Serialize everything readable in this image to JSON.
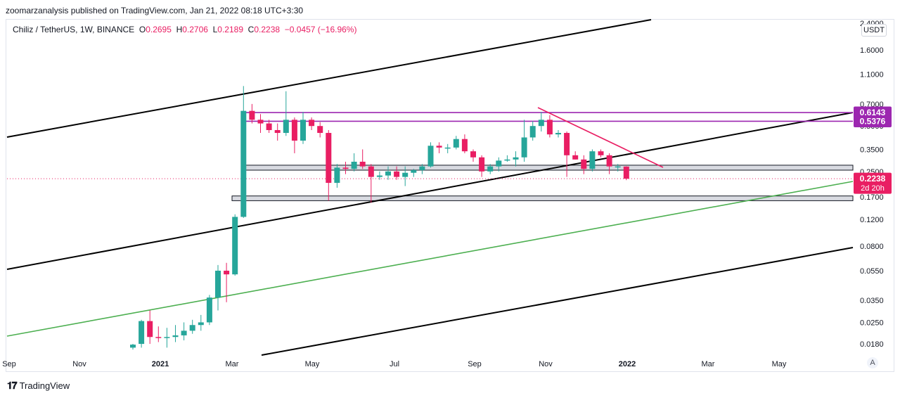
{
  "header": {
    "publish_line": "zoomarzanalysis published on TradingView.com, Jan 21, 2022 08:18 UTC+3:30"
  },
  "legend": {
    "symbol": "Chiliz / TetherUS, 1W, BINANCE",
    "open_key": "O",
    "open": "0.2695",
    "high_key": "H",
    "high": "0.2706",
    "low_key": "L",
    "low": "0.2189",
    "close_key": "C",
    "close": "0.2238",
    "change": "−0.0457 (−16.96%)"
  },
  "price_axis": {
    "currency": "USDT",
    "auto_label": "A",
    "last_price": "0.2238",
    "countdown": "2d 20h",
    "level_upper": "0.6143",
    "level_lower": "0.5376"
  },
  "colors": {
    "up": "#26a69a",
    "down": "#e91e63",
    "trendline": "#000000",
    "channel_green": "#4caf50",
    "resistance": "#9c27b0",
    "downtrend": "#e91e63",
    "zone_fill": "#d1d4dc",
    "price_tag": "#e91e63",
    "level_tag": "#9c27b0"
  },
  "chart_data": {
    "type": "candlestick",
    "symbol": "CHZUSDT",
    "interval": "1W",
    "y_scale": "log",
    "ylim": [
      0.0155,
      2.4
    ],
    "y_ticks": [
      "2.4000",
      "1.6000",
      "1.1000",
      "0.7000",
      "0.5000",
      "0.3500",
      "0.2500",
      "0.1700",
      "0.1200",
      "0.0800",
      "0.0550",
      "0.0350",
      "0.0250",
      "0.0180"
    ],
    "x_ticks": [
      "Sep",
      "Nov",
      "2021",
      "Mar",
      "May",
      "Jul",
      "Sep",
      "Nov",
      "2022",
      "Mar",
      "May"
    ],
    "grid": false,
    "candles": [
      {
        "o": 0.017,
        "h": 0.018,
        "l": 0.0165,
        "c": 0.0178
      },
      {
        "o": 0.018,
        "h": 0.026,
        "l": 0.017,
        "c": 0.0255
      },
      {
        "o": 0.0255,
        "h": 0.03,
        "l": 0.018,
        "c": 0.02
      },
      {
        "o": 0.02,
        "h": 0.0235,
        "l": 0.0185,
        "c": 0.0198
      },
      {
        "o": 0.0198,
        "h": 0.023,
        "l": 0.017,
        "c": 0.02
      },
      {
        "o": 0.02,
        "h": 0.024,
        "l": 0.0185,
        "c": 0.0205
      },
      {
        "o": 0.0205,
        "h": 0.025,
        "l": 0.019,
        "c": 0.022
      },
      {
        "o": 0.022,
        "h": 0.026,
        "l": 0.021,
        "c": 0.024
      },
      {
        "o": 0.024,
        "h": 0.028,
        "l": 0.022,
        "c": 0.025
      },
      {
        "o": 0.025,
        "h": 0.038,
        "l": 0.024,
        "c": 0.0365
      },
      {
        "o": 0.0365,
        "h": 0.06,
        "l": 0.03,
        "c": 0.055
      },
      {
        "o": 0.055,
        "h": 0.062,
        "l": 0.034,
        "c": 0.052
      },
      {
        "o": 0.052,
        "h": 0.13,
        "l": 0.051,
        "c": 0.125
      },
      {
        "o": 0.125,
        "h": 0.92,
        "l": 0.123,
        "c": 0.63
      },
      {
        "o": 0.63,
        "h": 0.7,
        "l": 0.52,
        "c": 0.55
      },
      {
        "o": 0.55,
        "h": 0.6,
        "l": 0.45,
        "c": 0.52
      },
      {
        "o": 0.52,
        "h": 0.55,
        "l": 0.45,
        "c": 0.47
      },
      {
        "o": 0.47,
        "h": 0.52,
        "l": 0.4,
        "c": 0.45
      },
      {
        "o": 0.45,
        "h": 0.85,
        "l": 0.43,
        "c": 0.55
      },
      {
        "o": 0.55,
        "h": 0.57,
        "l": 0.33,
        "c": 0.4
      },
      {
        "o": 0.4,
        "h": 0.62,
        "l": 0.38,
        "c": 0.55
      },
      {
        "o": 0.55,
        "h": 0.57,
        "l": 0.47,
        "c": 0.5
      },
      {
        "o": 0.5,
        "h": 0.53,
        "l": 0.42,
        "c": 0.45
      },
      {
        "o": 0.45,
        "h": 0.47,
        "l": 0.16,
        "c": 0.21
      },
      {
        "o": 0.21,
        "h": 0.28,
        "l": 0.195,
        "c": 0.265
      },
      {
        "o": 0.265,
        "h": 0.29,
        "l": 0.24,
        "c": 0.26
      },
      {
        "o": 0.26,
        "h": 0.33,
        "l": 0.25,
        "c": 0.29
      },
      {
        "o": 0.29,
        "h": 0.35,
        "l": 0.26,
        "c": 0.27
      },
      {
        "o": 0.27,
        "h": 0.28,
        "l": 0.155,
        "c": 0.23
      },
      {
        "o": 0.23,
        "h": 0.25,
        "l": 0.22,
        "c": 0.235
      },
      {
        "o": 0.235,
        "h": 0.27,
        "l": 0.22,
        "c": 0.25
      },
      {
        "o": 0.25,
        "h": 0.27,
        "l": 0.22,
        "c": 0.23
      },
      {
        "o": 0.23,
        "h": 0.27,
        "l": 0.2,
        "c": 0.245
      },
      {
        "o": 0.245,
        "h": 0.26,
        "l": 0.23,
        "c": 0.255
      },
      {
        "o": 0.255,
        "h": 0.28,
        "l": 0.24,
        "c": 0.27
      },
      {
        "o": 0.27,
        "h": 0.39,
        "l": 0.265,
        "c": 0.37
      },
      {
        "o": 0.37,
        "h": 0.39,
        "l": 0.33,
        "c": 0.36
      },
      {
        "o": 0.36,
        "h": 0.38,
        "l": 0.33,
        "c": 0.36
      },
      {
        "o": 0.36,
        "h": 0.43,
        "l": 0.35,
        "c": 0.41
      },
      {
        "o": 0.41,
        "h": 0.44,
        "l": 0.33,
        "c": 0.34
      },
      {
        "o": 0.34,
        "h": 0.35,
        "l": 0.29,
        "c": 0.31
      },
      {
        "o": 0.31,
        "h": 0.32,
        "l": 0.23,
        "c": 0.25
      },
      {
        "o": 0.25,
        "h": 0.28,
        "l": 0.24,
        "c": 0.27
      },
      {
        "o": 0.27,
        "h": 0.31,
        "l": 0.25,
        "c": 0.295
      },
      {
        "o": 0.295,
        "h": 0.32,
        "l": 0.29,
        "c": 0.3
      },
      {
        "o": 0.3,
        "h": 0.34,
        "l": 0.27,
        "c": 0.31
      },
      {
        "o": 0.31,
        "h": 0.55,
        "l": 0.29,
        "c": 0.42
      },
      {
        "o": 0.42,
        "h": 0.54,
        "l": 0.4,
        "c": 0.5
      },
      {
        "o": 0.5,
        "h": 0.62,
        "l": 0.46,
        "c": 0.55
      },
      {
        "o": 0.55,
        "h": 0.59,
        "l": 0.42,
        "c": 0.44
      },
      {
        "o": 0.44,
        "h": 0.47,
        "l": 0.42,
        "c": 0.45
      },
      {
        "o": 0.45,
        "h": 0.46,
        "l": 0.23,
        "c": 0.32
      },
      {
        "o": 0.32,
        "h": 0.34,
        "l": 0.3,
        "c": 0.3
      },
      {
        "o": 0.3,
        "h": 0.32,
        "l": 0.24,
        "c": 0.26
      },
      {
        "o": 0.26,
        "h": 0.35,
        "l": 0.25,
        "c": 0.34
      },
      {
        "o": 0.34,
        "h": 0.35,
        "l": 0.31,
        "c": 0.32
      },
      {
        "o": 0.32,
        "h": 0.33,
        "l": 0.24,
        "c": 0.27
      },
      {
        "o": 0.27,
        "h": 0.28,
        "l": 0.25,
        "c": 0.27
      },
      {
        "o": 0.2695,
        "h": 0.2706,
        "l": 0.2189,
        "c": 0.2238
      }
    ],
    "drawings": [
      {
        "kind": "trendline",
        "color": "black"
      },
      {
        "kind": "trendline",
        "color": "black"
      },
      {
        "kind": "trendline",
        "color": "black"
      },
      {
        "kind": "trendline",
        "color": "green"
      },
      {
        "kind": "horizontal_level",
        "price": 0.6143,
        "color": "purple"
      },
      {
        "kind": "horizontal_level",
        "price": 0.5376,
        "color": "purple"
      },
      {
        "kind": "downtrend_line",
        "color": "red"
      },
      {
        "kind": "zone",
        "from": 0.255,
        "to": 0.275
      },
      {
        "kind": "zone",
        "from": 0.16,
        "to": 0.172
      }
    ]
  },
  "footer": {
    "brand": "TradingView",
    "logo_glyph": "𝟏𝟕"
  }
}
